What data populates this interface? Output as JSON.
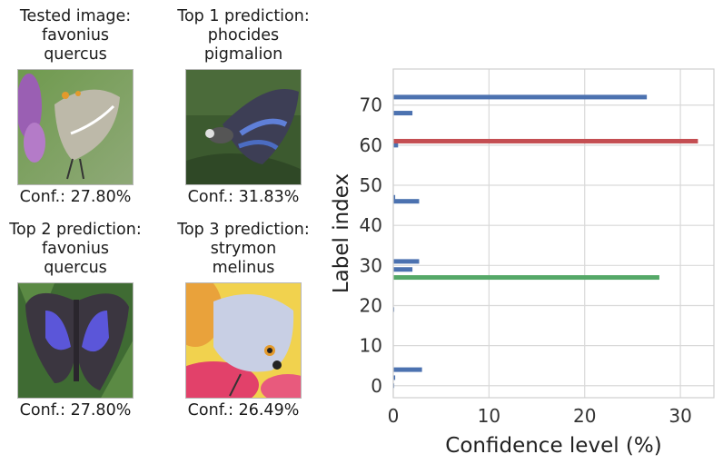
{
  "panels": [
    {
      "title": "Tested image:\nfavonius\nquercus",
      "conf": "Conf.: 27.80%",
      "image": "butterfly-photo-tested-grey-on-purple-flowers"
    },
    {
      "title": "Top 1 prediction:\nphocides\npigmalion",
      "conf": "Conf.: 31.83%",
      "image": "butterfly-photo-blue-dark-on-leaf"
    },
    {
      "title": "Top 2 prediction:\nfavonius\nquercus",
      "conf": "Conf.: 27.80%",
      "image": "butterfly-photo-purple-wings-open"
    },
    {
      "title": "Top 3 prediction:\nstrymon\nmelinus",
      "conf": "Conf.: 26.49%",
      "image": "butterfly-photo-grey-on-pink-yellow-flower"
    }
  ],
  "chart_data": {
    "type": "bar",
    "orientation": "horizontal",
    "xlabel": "Confidence level (%)",
    "ylabel": "Label index",
    "xlim": [
      0,
      33.5
    ],
    "ylim": [
      -3,
      79
    ],
    "xticks": [
      0,
      10,
      20,
      30
    ],
    "yticks": [
      0,
      10,
      20,
      30,
      40,
      50,
      60,
      70
    ],
    "grid": true,
    "bars": [
      {
        "label_index": 0,
        "value": 0.1,
        "color": "#4c72b0"
      },
      {
        "label_index": 2,
        "value": 0.2,
        "color": "#4c72b0"
      },
      {
        "label_index": 4,
        "value": 3.0,
        "color": "#4c72b0"
      },
      {
        "label_index": 19,
        "value": 0.1,
        "color": "#4c72b0"
      },
      {
        "label_index": 27,
        "value": 27.8,
        "color": "#55a868"
      },
      {
        "label_index": 29,
        "value": 2.0,
        "color": "#4c72b0"
      },
      {
        "label_index": 31,
        "value": 2.7,
        "color": "#4c72b0"
      },
      {
        "label_index": 46,
        "value": 2.7,
        "color": "#4c72b0"
      },
      {
        "label_index": 47,
        "value": 0.2,
        "color": "#4c72b0"
      },
      {
        "label_index": 60,
        "value": 0.5,
        "color": "#4c72b0"
      },
      {
        "label_index": 61,
        "value": 31.83,
        "color": "#c44e52"
      },
      {
        "label_index": 68,
        "value": 2.0,
        "color": "#4c72b0"
      },
      {
        "label_index": 72,
        "value": 26.49,
        "color": "#4c72b0"
      }
    ]
  }
}
